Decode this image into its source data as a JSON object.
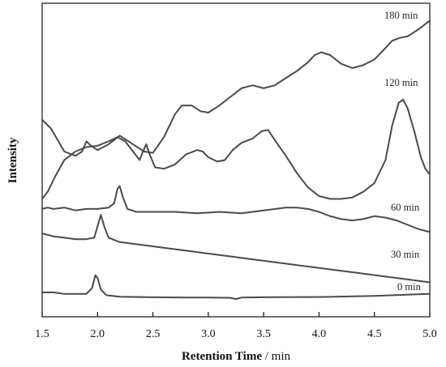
{
  "chart_data": {
    "type": "line",
    "xlabel": "Retention Time",
    "xlabel_unit": " / min",
    "ylabel": "Intensity",
    "xlim": [
      1.5,
      5.0
    ],
    "ylim": [
      0,
      100
    ],
    "grid": false,
    "x_ticks": [
      "1.5",
      "2.0",
      "2.5",
      "3.0",
      "3.5",
      "4.0",
      "4.5",
      "5.0"
    ],
    "series": [
      {
        "name": "180 min",
        "points": [
          [
            1.5,
            62
          ],
          [
            1.58,
            59
          ],
          [
            1.7,
            51
          ],
          [
            1.8,
            49.5
          ],
          [
            1.86,
            51
          ],
          [
            1.9,
            54.5
          ],
          [
            1.94,
            53
          ],
          [
            2.0,
            51.5
          ],
          [
            2.1,
            53.5
          ],
          [
            2.2,
            56.5
          ],
          [
            2.3,
            54
          ],
          [
            2.42,
            51
          ],
          [
            2.5,
            50.5
          ],
          [
            2.6,
            56
          ],
          [
            2.7,
            64
          ],
          [
            2.76,
            67
          ],
          [
            2.85,
            67
          ],
          [
            2.93,
            65
          ],
          [
            3.0,
            64.5
          ],
          [
            3.1,
            67
          ],
          [
            3.2,
            70
          ],
          [
            3.3,
            73
          ],
          [
            3.4,
            74
          ],
          [
            3.5,
            73
          ],
          [
            3.6,
            74
          ],
          [
            3.7,
            76.5
          ],
          [
            3.8,
            79
          ],
          [
            3.9,
            82
          ],
          [
            3.96,
            84.5
          ],
          [
            4.02,
            85.5
          ],
          [
            4.1,
            84.5
          ],
          [
            4.2,
            81.5
          ],
          [
            4.3,
            80
          ],
          [
            4.4,
            81
          ],
          [
            4.5,
            83
          ],
          [
            4.6,
            87
          ],
          [
            4.66,
            89.5
          ],
          [
            4.73,
            90.5
          ],
          [
            4.8,
            91
          ],
          [
            4.9,
            93.5
          ],
          [
            5.0,
            96.5
          ]
        ]
      },
      {
        "name": "120 min",
        "points": [
          [
            1.5,
            34.5
          ],
          [
            1.55,
            37
          ],
          [
            1.62,
            42.5
          ],
          [
            1.7,
            48
          ],
          [
            1.8,
            51
          ],
          [
            1.9,
            52.5
          ],
          [
            2.0,
            53
          ],
          [
            2.1,
            54.5
          ],
          [
            2.18,
            56
          ],
          [
            2.25,
            54.5
          ],
          [
            2.32,
            51
          ],
          [
            2.38,
            48
          ],
          [
            2.41,
            51
          ],
          [
            2.44,
            53.5
          ],
          [
            2.47,
            50
          ],
          [
            2.52,
            45.5
          ],
          [
            2.6,
            45
          ],
          [
            2.7,
            46.5
          ],
          [
            2.8,
            50
          ],
          [
            2.9,
            51.5
          ],
          [
            2.95,
            51
          ],
          [
            3.0,
            49
          ],
          [
            3.08,
            47.5
          ],
          [
            3.15,
            48
          ],
          [
            3.22,
            51.5
          ],
          [
            3.3,
            54
          ],
          [
            3.4,
            55.5
          ],
          [
            3.48,
            58
          ],
          [
            3.54,
            58.5
          ],
          [
            3.6,
            55
          ],
          [
            3.7,
            49.5
          ],
          [
            3.8,
            43.5
          ],
          [
            3.9,
            38.5
          ],
          [
            4.0,
            35.5
          ],
          [
            4.1,
            34.5
          ],
          [
            4.2,
            34.5
          ],
          [
            4.3,
            35
          ],
          [
            4.4,
            37
          ],
          [
            4.5,
            40
          ],
          [
            4.6,
            48
          ],
          [
            4.66,
            60
          ],
          [
            4.72,
            68
          ],
          [
            4.76,
            69
          ],
          [
            4.8,
            66
          ],
          [
            4.86,
            58
          ],
          [
            4.92,
            49
          ],
          [
            4.96,
            45
          ],
          [
            5.0,
            43
          ]
        ]
      },
      {
        "name": "60 min",
        "points": [
          [
            1.5,
            31
          ],
          [
            1.55,
            31.5
          ],
          [
            1.6,
            31
          ],
          [
            1.7,
            31.5
          ],
          [
            1.8,
            30.5
          ],
          [
            1.9,
            31
          ],
          [
            2.0,
            31
          ],
          [
            2.1,
            31.5
          ],
          [
            2.15,
            33
          ],
          [
            2.18,
            38
          ],
          [
            2.2,
            39
          ],
          [
            2.23,
            35
          ],
          [
            2.27,
            31
          ],
          [
            2.35,
            30
          ],
          [
            2.5,
            30
          ],
          [
            2.7,
            30
          ],
          [
            2.9,
            29.5
          ],
          [
            3.1,
            30
          ],
          [
            3.3,
            29.5
          ],
          [
            3.5,
            30.5
          ],
          [
            3.7,
            31.5
          ],
          [
            3.8,
            31.5
          ],
          [
            3.9,
            31
          ],
          [
            4.0,
            30
          ],
          [
            4.1,
            28.5
          ],
          [
            4.2,
            27.5
          ],
          [
            4.3,
            27
          ],
          [
            4.4,
            27.5
          ],
          [
            4.5,
            28.5
          ],
          [
            4.6,
            28
          ],
          [
            4.7,
            27
          ],
          [
            4.8,
            25.5
          ],
          [
            4.9,
            24
          ],
          [
            5.0,
            23
          ]
        ]
      },
      {
        "name": "30 min",
        "points": [
          [
            1.5,
            22.5
          ],
          [
            1.6,
            21.5
          ],
          [
            1.7,
            21
          ],
          [
            1.8,
            20.5
          ],
          [
            1.9,
            20.5
          ],
          [
            1.97,
            21
          ],
          [
            2.0,
            25
          ],
          [
            2.03,
            29
          ],
          [
            2.06,
            25
          ],
          [
            2.1,
            21
          ],
          [
            2.2,
            19.5
          ],
          [
            2.4,
            18.5
          ],
          [
            2.6,
            17.5
          ],
          [
            2.8,
            16.5
          ],
          [
            3.0,
            15.5
          ],
          [
            3.2,
            14.5
          ],
          [
            3.4,
            13.5
          ],
          [
            3.6,
            12.5
          ],
          [
            3.8,
            11.5
          ],
          [
            4.0,
            10.5
          ],
          [
            4.2,
            9.5
          ],
          [
            4.4,
            8.5
          ],
          [
            4.6,
            7.5
          ],
          [
            4.8,
            6.5
          ],
          [
            5.0,
            5.5
          ]
        ]
      },
      {
        "name": "0 min",
        "points": [
          [
            1.5,
            2
          ],
          [
            1.6,
            2
          ],
          [
            1.7,
            1.5
          ],
          [
            1.8,
            1.5
          ],
          [
            1.9,
            1.5
          ],
          [
            1.95,
            3.5
          ],
          [
            1.98,
            8
          ],
          [
            2.0,
            7
          ],
          [
            2.03,
            3
          ],
          [
            2.08,
            1
          ],
          [
            2.2,
            0.5
          ],
          [
            2.5,
            0.3
          ],
          [
            2.8,
            0.2
          ],
          [
            3.0,
            0.2
          ],
          [
            3.2,
            0.1
          ],
          [
            3.25,
            -0.3
          ],
          [
            3.3,
            0.2
          ],
          [
            3.5,
            0.3
          ],
          [
            4.0,
            0.4
          ],
          [
            4.5,
            0.8
          ],
          [
            5.0,
            1.5
          ]
        ]
      }
    ],
    "line_color": "#4a4a4a"
  }
}
